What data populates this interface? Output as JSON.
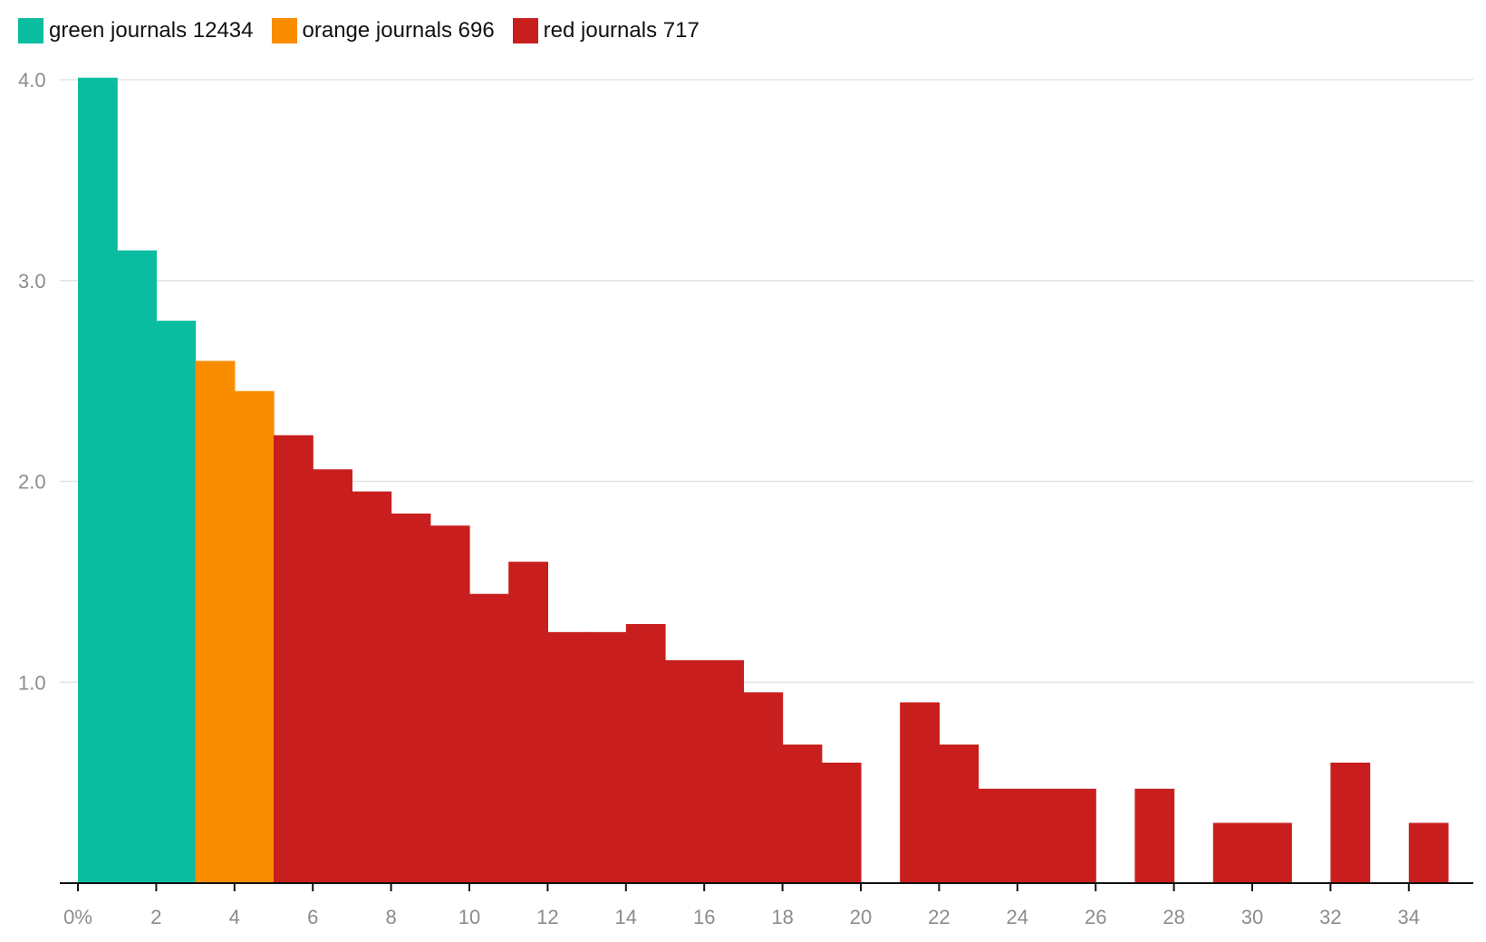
{
  "chart_data": {
    "type": "bar",
    "title": "",
    "xlabel": "",
    "ylabel": "",
    "xlim": [
      0,
      35
    ],
    "ylim": [
      0,
      4.0
    ],
    "grid": true,
    "legend_placement": "top-left",
    "bin_width": 1,
    "x_ticks": [
      0,
      2,
      4,
      6,
      8,
      10,
      12,
      14,
      16,
      18,
      20,
      22,
      24,
      26,
      28,
      30,
      32,
      34
    ],
    "x_tick_labels": [
      "0%",
      "2",
      "4",
      "6",
      "8",
      "10",
      "12",
      "14",
      "16",
      "18",
      "20",
      "22",
      "24",
      "26",
      "28",
      "30",
      "32",
      "34"
    ],
    "y_ticks": [
      1.0,
      2.0,
      3.0,
      4.0
    ],
    "y_tick_labels": [
      "1.0",
      "2.0",
      "3.0",
      "4.0"
    ],
    "series": [
      {
        "name": "green journals 12434",
        "color": "#0abda0",
        "bins": [
          {
            "x": 0,
            "value": 4.01
          },
          {
            "x": 1,
            "value": 3.15
          },
          {
            "x": 2,
            "value": 2.8
          }
        ]
      },
      {
        "name": "orange journals 696",
        "color": "#fa8c00",
        "bins": [
          {
            "x": 3,
            "value": 2.6
          },
          {
            "x": 4,
            "value": 2.45
          }
        ]
      },
      {
        "name": "red journals 717",
        "color": "#c81e1e",
        "bins": [
          {
            "x": 5,
            "value": 2.23
          },
          {
            "x": 6,
            "value": 2.06
          },
          {
            "x": 7,
            "value": 1.95
          },
          {
            "x": 8,
            "value": 1.84
          },
          {
            "x": 9,
            "value": 1.78
          },
          {
            "x": 10,
            "value": 1.44
          },
          {
            "x": 11,
            "value": 1.6
          },
          {
            "x": 12,
            "value": 1.25
          },
          {
            "x": 13,
            "value": 1.25
          },
          {
            "x": 14,
            "value": 1.29
          },
          {
            "x": 15,
            "value": 1.11
          },
          {
            "x": 16,
            "value": 1.11
          },
          {
            "x": 17,
            "value": 0.95
          },
          {
            "x": 18,
            "value": 0.69
          },
          {
            "x": 19,
            "value": 0.6
          },
          {
            "x": 21,
            "value": 0.9
          },
          {
            "x": 22,
            "value": 0.69
          },
          {
            "x": 23,
            "value": 0.47
          },
          {
            "x": 24,
            "value": 0.47
          },
          {
            "x": 25,
            "value": 0.47
          },
          {
            "x": 27,
            "value": 0.47
          },
          {
            "x": 29,
            "value": 0.3
          },
          {
            "x": 30,
            "value": 0.3
          },
          {
            "x": 32,
            "value": 0.6
          },
          {
            "x": 34,
            "value": 0.3
          }
        ]
      }
    ]
  },
  "colors": {
    "grid": "#e3e3e3",
    "axis": "#111111",
    "tick_text": "#8c8c8c",
    "legend_text": "#111111"
  }
}
